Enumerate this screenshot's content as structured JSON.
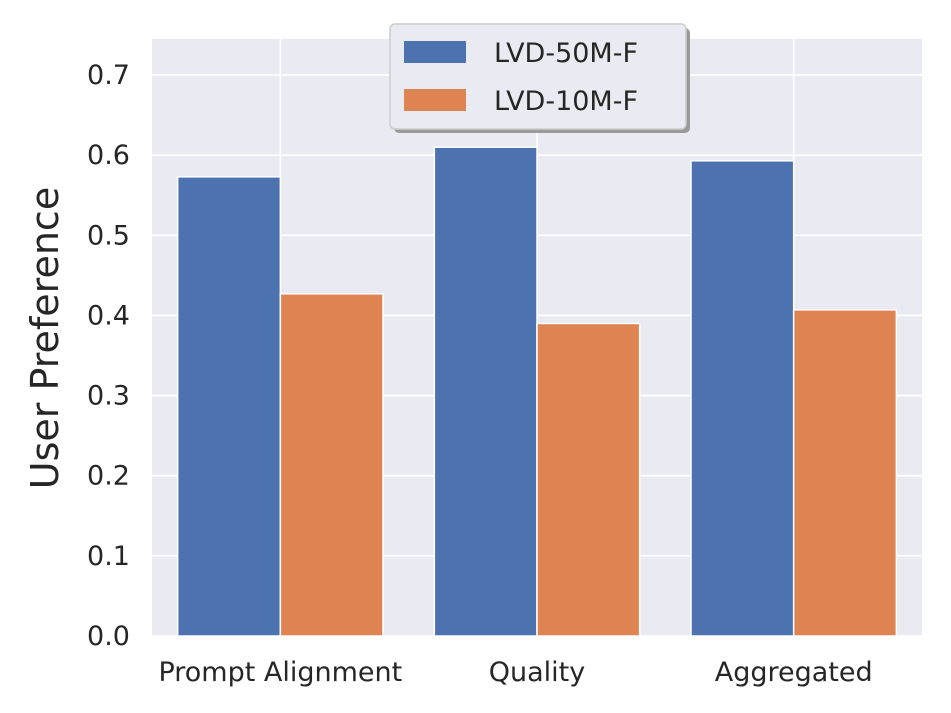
{
  "chart_data": {
    "type": "bar",
    "title": "",
    "xlabel": "",
    "ylabel": "User Preference",
    "categories": [
      "Prompt Alignment",
      "Quality",
      "Aggregated"
    ],
    "series": [
      {
        "name": "LVD-50M-F",
        "values": [
          0.573,
          0.61,
          0.593
        ],
        "color": "#4C72B0"
      },
      {
        "name": "LVD-10M-F",
        "values": [
          0.427,
          0.39,
          0.407
        ],
        "color": "#DD8452"
      }
    ],
    "ylim": [
      0,
      0.745
    ],
    "yticks": [
      "0.0",
      "0.1",
      "0.2",
      "0.3",
      "0.4",
      "0.5",
      "0.6",
      "0.7"
    ],
    "grid": true,
    "legend_position": "top-center",
    "plot_background": "#EAEAF2",
    "grid_color": "#FFFFFF"
  }
}
